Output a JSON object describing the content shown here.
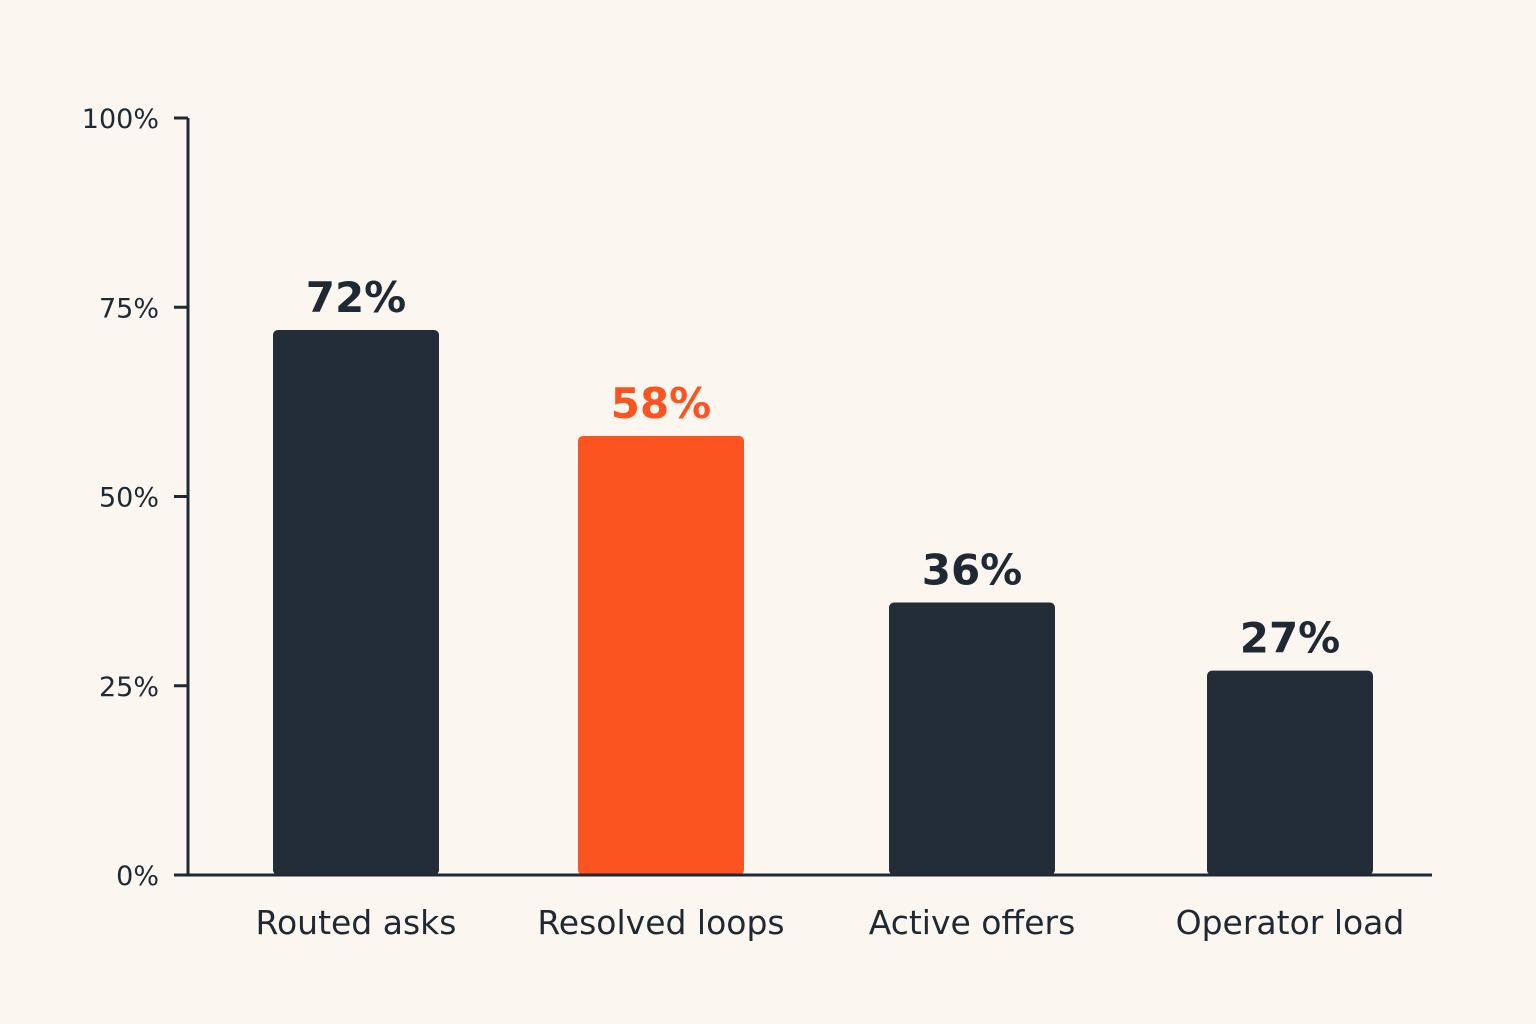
{
  "chart_data": {
    "type": "bar",
    "categories": [
      "Routed asks",
      "Resolved loops",
      "Active offers",
      "Operator load"
    ],
    "values": [
      72,
      58,
      36,
      27
    ],
    "value_labels": [
      "72%",
      "58%",
      "36%",
      "27%"
    ],
    "title": "",
    "xlabel": "",
    "ylabel": "",
    "ylim": [
      0,
      100
    ],
    "yticks": [
      0,
      25,
      50,
      75,
      100
    ],
    "ytick_labels": [
      "0%",
      "25%",
      "50%",
      "75%",
      "100%"
    ],
    "grid": false,
    "legend": "none",
    "highlight_index": 1,
    "colors": {
      "bar": "#232d38",
      "highlight": "#fc5421",
      "text": "#1f2933",
      "background": "#fbf6f0"
    }
  }
}
